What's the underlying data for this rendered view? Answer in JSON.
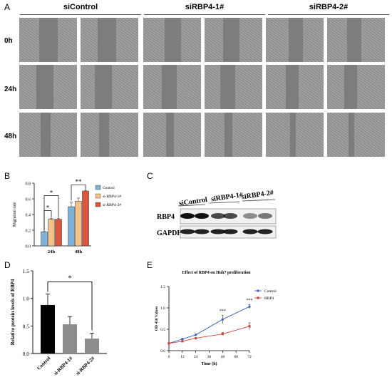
{
  "panel_letters": {
    "A": "A",
    "B": "B",
    "C": "C",
    "D": "D",
    "E": "E"
  },
  "panelA": {
    "groups": [
      "siControl",
      "siRBP4-1#",
      "siRBP4-2#"
    ],
    "rows": [
      "0h",
      "24h",
      "48h"
    ]
  },
  "chart_data": [
    {
      "panel": "B",
      "type": "bar",
      "ylabel": "Migration rate",
      "categories": [
        "24h",
        "48h"
      ],
      "ylim": [
        0,
        0.8
      ],
      "yticks": [
        "0.0",
        "0.2",
        "0.4",
        "0.6",
        "0.8"
      ],
      "series": [
        {
          "name": "Control",
          "values": [
            0.18,
            0.5
          ],
          "errors": [
            0.01,
            0.06
          ],
          "color": "#7fb2d8"
        },
        {
          "name": "si-RBP4-1#",
          "values": [
            0.34,
            0.57
          ],
          "errors": [
            0.01,
            0.04
          ],
          "color": "#f2c28a"
        },
        {
          "name": "si-RBP4-2#",
          "values": [
            0.34,
            0.7
          ],
          "errors": [
            0.01,
            0.01
          ],
          "color": "#d9573f"
        }
      ],
      "annotations": [
        "*",
        "*",
        "**"
      ]
    },
    {
      "panel": "D",
      "type": "bar",
      "ylabel": "Relative protein levels of RBP4",
      "categories": [
        "Control",
        "si-RBP4-1#",
        "si-RBP4-2#"
      ],
      "values": [
        0.88,
        0.53,
        0.27
      ],
      "errors": [
        0.2,
        0.14,
        0.1
      ],
      "colors": [
        "#000000",
        "#8c8c8c",
        "#8c8c8c"
      ],
      "ylim": [
        0,
        1.5
      ],
      "yticks": [
        "0.0",
        "0.5",
        "1.0",
        "1.5"
      ],
      "annotations": [
        "*"
      ]
    },
    {
      "panel": "E",
      "type": "line",
      "title": "Effect of RBP4 on Huh7 proliferation",
      "xlabel": "Time (h)",
      "ylabel": "OD 450 Values",
      "x": [
        0,
        12,
        24,
        48,
        72
      ],
      "xticks": [
        "0",
        "12",
        "24",
        "36",
        "48",
        "60",
        "72"
      ],
      "ylim": [
        0,
        1.5
      ],
      "yticks": [
        "0.0",
        "0.5",
        "1.0",
        "1.5"
      ],
      "series": [
        {
          "name": "Control",
          "values": [
            0.17,
            0.27,
            0.37,
            0.73,
            1.03
          ],
          "errors": [
            0.01,
            0.02,
            0.02,
            0.1,
            0.05
          ],
          "color": "#3b5fc0"
        },
        {
          "name": "RBP4",
          "values": [
            0.17,
            0.22,
            0.29,
            0.39,
            0.57
          ],
          "errors": [
            0.01,
            0.01,
            0.01,
            0.03,
            0.08
          ],
          "color": "#c8473c"
        }
      ],
      "annotations": [
        "***",
        "***"
      ]
    }
  ],
  "panelC": {
    "lanes": [
      "siControl",
      "siRBP4-1#",
      "siRBP4-2#"
    ],
    "bands": [
      "RBP4",
      "GAPDH"
    ]
  }
}
